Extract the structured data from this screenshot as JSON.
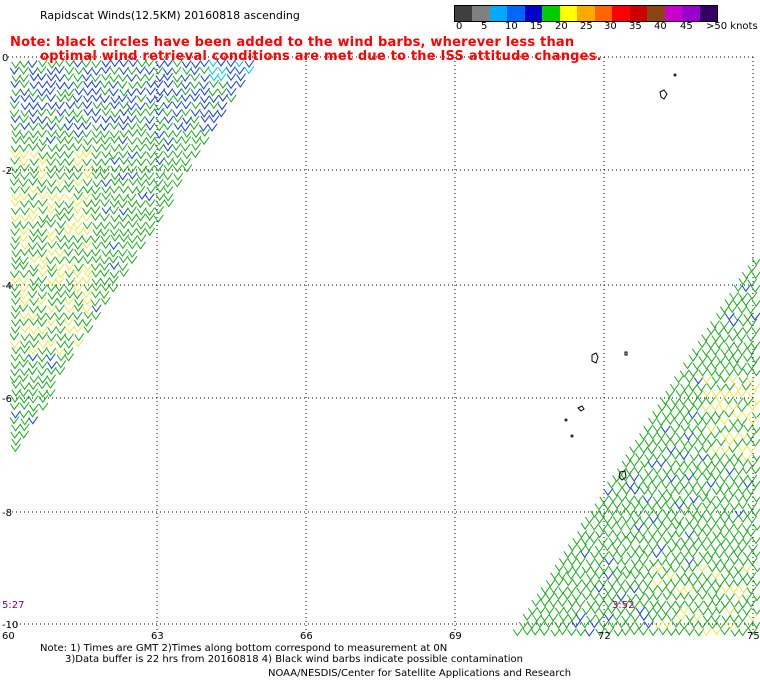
{
  "title": "Rapidscat Winds(12.5KM) 20160818 ascending",
  "note_line1": "Note: black circles have been added to the wind barbs, wherever less than",
  "note_line2": "optimal wind retrieval conditions are met due to the ISS attitude changes.",
  "legend": {
    "labels": [
      "0",
      "5",
      "10",
      "15",
      "20",
      "25",
      "30",
      "35",
      "40",
      "45",
      ">50 knots"
    ],
    "colors": [
      "#404040",
      "#808080",
      "#00aaff",
      "#0066ff",
      "#0000cc",
      "#00cc00",
      "#ffff00",
      "#ffaa00",
      "#ff6600",
      "#ff0000",
      "#cc0000",
      "#8b4513",
      "#cc00cc",
      "#9900cc",
      "#330066"
    ]
  },
  "axes": {
    "x_labels": [
      "60",
      "63",
      "66",
      "69",
      "72",
      "75"
    ],
    "y_labels": [
      "0",
      "-2",
      "-4",
      "-6",
      "-8",
      "-10"
    ]
  },
  "time_left": "5:27",
  "time_right": "3:52",
  "footer_note1": "Note: 1) Times are GMT 2)Times along bottom correspond to measurement at 0N",
  "footer_note2": "3)Data buffer is 22 hrs from 20160818 4) Black wind barbs indicate possible contamination",
  "footer_credit": "NOAA/NESDIS/Center for Satellite Applications and Research"
}
